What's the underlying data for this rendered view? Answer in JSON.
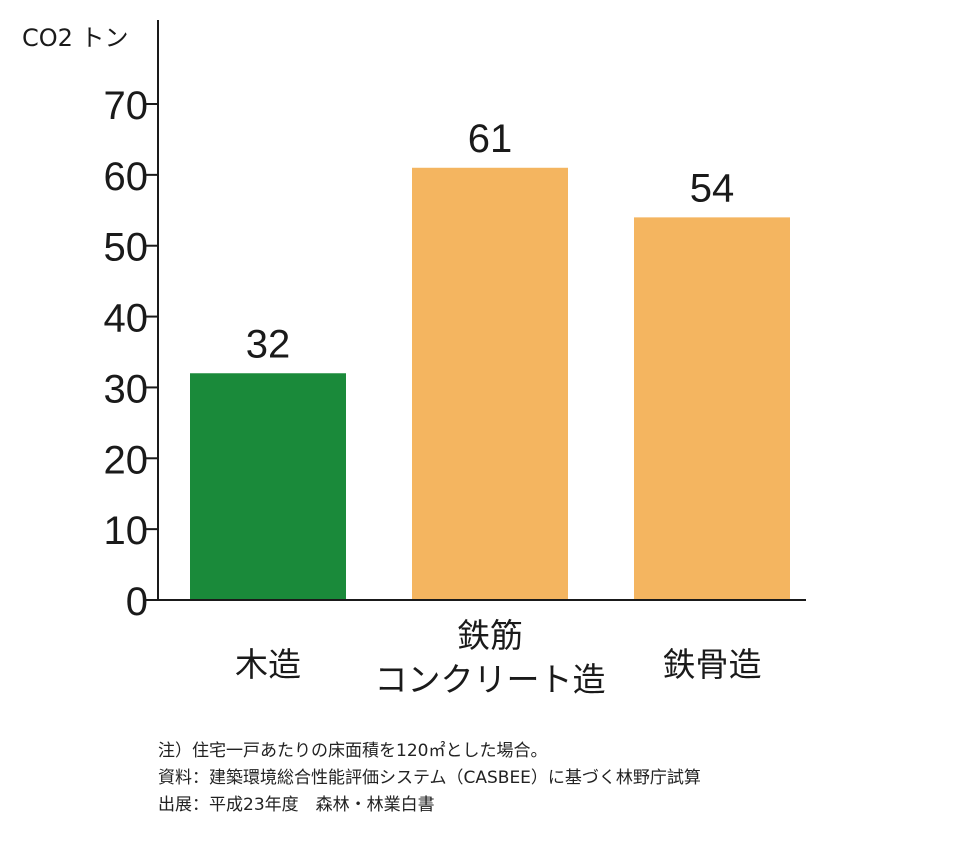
{
  "chart_data": {
    "type": "bar",
    "ylabel": "CO2 トン",
    "ylim": [
      0,
      70
    ],
    "yticks": [
      0,
      10,
      20,
      30,
      40,
      50,
      60,
      70
    ],
    "categories": [
      [
        "木造"
      ],
      [
        "鉄筋",
        "コンクリート造"
      ],
      [
        "鉄骨造"
      ]
    ],
    "values": [
      32,
      61,
      54
    ],
    "value_labels": [
      "32",
      "61",
      "54"
    ],
    "colors": [
      "#1a8a3a",
      "#f4b560",
      "#f4b560"
    ],
    "grid": false,
    "legend": "none"
  },
  "notes": [
    "注）住宅一戸あたりの床面積を120㎡とした場合。",
    "資料：建築環境総合性能評価システム（CASBEE）に基づく林野庁試算",
    "出展：平成23年度　森林・林業白書"
  ]
}
